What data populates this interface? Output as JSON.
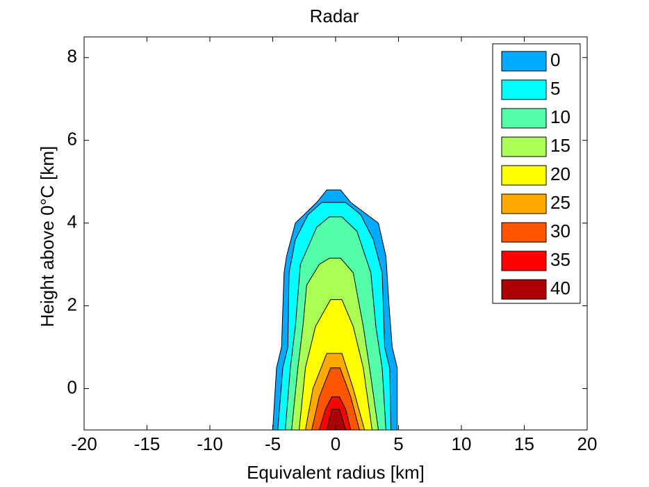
{
  "chart_data": {
    "type": "contour",
    "title": "Radar",
    "xlabel": "Equivalent radius [km]",
    "ylabel": "Height above 0°C [km]",
    "xlim": [
      -20,
      20
    ],
    "ylim": [
      -1,
      8.5
    ],
    "xticks": [
      -20,
      -15,
      -10,
      -5,
      0,
      5,
      10,
      15,
      20
    ],
    "yticks": [
      0,
      2,
      4,
      6,
      8
    ],
    "legend": "upper right",
    "levels": [
      {
        "level": 0,
        "color": "#00aaff",
        "x": [
          -5.0,
          -4.7,
          -4.3,
          -4.1,
          -3.9,
          -3.2,
          -1.5,
          -0.7,
          0.4,
          1.2,
          3.4,
          4.0,
          4.25,
          4.5,
          4.9,
          4.9
        ],
        "y": [
          -1,
          0.5,
          1,
          2.8,
          3.2,
          4,
          4.5,
          4.8,
          4.8,
          4.5,
          4,
          3.2,
          2,
          1,
          0.5,
          -1
        ]
      },
      {
        "level": 5,
        "color": "#00ffff",
        "x": [
          -4.6,
          -4.2,
          -3.8,
          -3.7,
          -3.2,
          -2.2,
          -1.1,
          0.8,
          2.0,
          3.0,
          3.7,
          3.9,
          4.3,
          4.4
        ],
        "y": [
          -1,
          0.5,
          1,
          2.8,
          3.6,
          4.2,
          4.5,
          4.5,
          4.2,
          3.6,
          2.8,
          1,
          0.5,
          -1
        ]
      },
      {
        "level": 10,
        "color": "#55ffaa",
        "x": [
          -4.0,
          -3.6,
          -3.2,
          -2.8,
          -1.5,
          -0.5,
          0.5,
          1.7,
          2.8,
          3.2,
          3.7,
          4.0
        ],
        "y": [
          -1,
          0.5,
          1.5,
          3,
          3.9,
          4.15,
          4.15,
          3.8,
          2.8,
          1.5,
          0.5,
          -1
        ]
      },
      {
        "level": 15,
        "color": "#aaff55",
        "x": [
          -3.5,
          -3.0,
          -2.6,
          -2.3,
          -1.3,
          -0.5,
          0.4,
          1.4,
          2.2,
          2.7,
          3.4
        ],
        "y": [
          -1,
          0.5,
          1.5,
          2.5,
          3.0,
          3.15,
          3.15,
          2.8,
          1.5,
          0.5,
          -1
        ]
      },
      {
        "level": 20,
        "color": "#ffff00",
        "x": [
          -2.9,
          -2.4,
          -1.6,
          -0.4,
          0.5,
          1.4,
          2.2,
          2.9
        ],
        "y": [
          -1,
          0.5,
          1.5,
          2.15,
          2.15,
          1.5,
          0.5,
          -1
        ]
      },
      {
        "level": 25,
        "color": "#ffaa00",
        "x": [
          -2.4,
          -1.8,
          -0.7,
          0.5,
          1.4,
          2.3
        ],
        "y": [
          -1,
          0,
          0.85,
          0.85,
          0,
          -1
        ]
      },
      {
        "level": 30,
        "color": "#ff5500",
        "x": [
          -1.9,
          -1.3,
          -0.4,
          0.35,
          1.2,
          1.9
        ],
        "y": [
          -1,
          -0.2,
          0.5,
          0.5,
          -0.2,
          -1
        ]
      },
      {
        "level": 35,
        "color": "#ff0000",
        "x": [
          -1.3,
          -0.8,
          -0.3,
          0.3,
          0.8,
          1.2
        ],
        "y": [
          -1,
          -0.5,
          -0.2,
          -0.2,
          -0.5,
          -1
        ]
      },
      {
        "level": 40,
        "color": "#aa0000",
        "x": [
          -0.7,
          -0.3,
          0.3,
          0.8
        ],
        "y": [
          -1,
          -0.5,
          -0.5,
          -1
        ]
      }
    ]
  }
}
